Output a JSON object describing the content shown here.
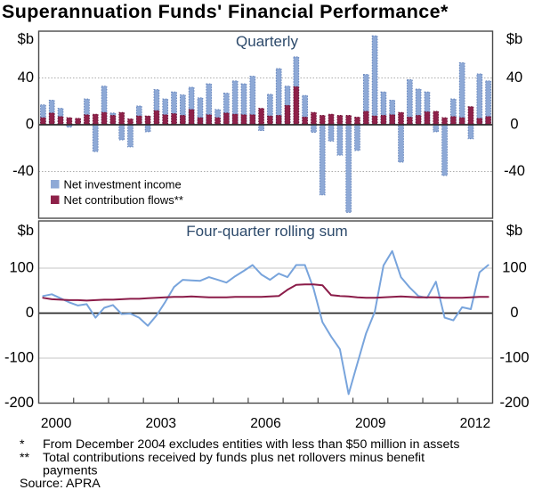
{
  "title": "Superannuation Funds' Financial Performance*",
  "top_panel": {
    "caption": "Quarterly",
    "unit_left": "$b",
    "unit_right": "$b",
    "legend": [
      {
        "label": "Net investment income",
        "color": "#8ea9d6"
      },
      {
        "label": "Net contribution flows**",
        "color": "#8e2149"
      }
    ]
  },
  "bottom_panel": {
    "caption": "Four-quarter rolling sum",
    "unit_left": "$b",
    "unit_right": "$b"
  },
  "x_axis": {
    "tick_years": [
      2001,
      2002,
      2003,
      2004,
      2005,
      2006,
      2007,
      2008,
      2009,
      2010,
      2011,
      2012
    ],
    "year_labels": [
      "2000",
      "2003",
      "2006",
      "2009",
      "2012"
    ]
  },
  "footnotes": [
    {
      "marker": "*",
      "text": "From December 2004 excludes entities with less than $50 million in assets"
    },
    {
      "marker": "**",
      "text": "Total contributions received by funds plus net rollovers minus benefit",
      "text_cont": "payments"
    }
  ],
  "source": "Source: APRA",
  "colors": {
    "invest": "#8ea9d6",
    "invest_border": "#5f7fb8",
    "contrib": "#8e2149",
    "contrib_border": "#6d1536",
    "invest_line": "#78a4dc",
    "contrib_line": "#8b1c49",
    "grid_top": "#adadad",
    "grid_bottom": "#c4c4c4",
    "zero": "#2b2b2b",
    "axis": "#4a4a4a"
  },
  "chart_data": [
    {
      "type": "bar",
      "panel": "top",
      "title": "Quarterly",
      "bar_mode": "overlay",
      "ylabel": "$b",
      "xlim": [
        2000,
        2013
      ],
      "ylim": [
        -80,
        80
      ],
      "yticks": [
        40,
        0,
        -40
      ],
      "categories": [
        "2000 Q1",
        "2000 Q2",
        "2000 Q3",
        "2000 Q4",
        "2001 Q1",
        "2001 Q2",
        "2001 Q3",
        "2001 Q4",
        "2002 Q1",
        "2002 Q2",
        "2002 Q3",
        "2002 Q4",
        "2003 Q1",
        "2003 Q2",
        "2003 Q3",
        "2003 Q4",
        "2004 Q1",
        "2004 Q2",
        "2004 Q3",
        "2004 Q4",
        "2005 Q1",
        "2005 Q2",
        "2005 Q3",
        "2005 Q4",
        "2006 Q1",
        "2006 Q2",
        "2006 Q3",
        "2006 Q4",
        "2007 Q1",
        "2007 Q2",
        "2007 Q3",
        "2007 Q4",
        "2008 Q1",
        "2008 Q2",
        "2008 Q3",
        "2008 Q4",
        "2009 Q1",
        "2009 Q2",
        "2009 Q3",
        "2009 Q4",
        "2010 Q1",
        "2010 Q2",
        "2010 Q3",
        "2010 Q4",
        "2011 Q1",
        "2011 Q2",
        "2011 Q3",
        "2011 Q4",
        "2012 Q1",
        "2012 Q2",
        "2012 Q3",
        "2012 Q4"
      ],
      "series": [
        {
          "key": "net-investment-income",
          "name": "Net investment income",
          "color": "#8ea9d6",
          "border": "#5f7fb8",
          "values": [
            17,
            21,
            14,
            -2,
            3,
            22,
            -23,
            33,
            10,
            -13,
            -19,
            16,
            -6,
            30,
            22,
            28,
            25.5,
            32,
            23,
            35,
            13,
            27,
            37.5,
            35,
            41.5,
            -5,
            26,
            48,
            33,
            58,
            25,
            -6.5,
            -60,
            -14,
            -26,
            -75,
            -22,
            43,
            76,
            28,
            21,
            -32,
            38.5,
            30.5,
            28,
            -6,
            -43.5,
            22,
            53,
            -12,
            43.5,
            37.5
          ]
        },
        {
          "key": "net-contribution-flows",
          "name": "Net contribution flows**",
          "color": "#8e2149",
          "border": "#6d1536",
          "values": [
            6,
            10,
            7,
            6,
            5.5,
            8.5,
            9,
            10.5,
            8,
            10.5,
            5,
            7.5,
            7.5,
            12,
            8.5,
            9.5,
            8,
            13,
            6,
            8.5,
            6,
            10,
            9,
            8.5,
            8.5,
            14,
            7.5,
            8,
            16.5,
            32.5,
            6.5,
            10.5,
            8,
            9,
            8,
            8,
            6.5,
            11.5,
            7.5,
            8,
            8.5,
            10.5,
            6.5,
            8,
            11,
            11.5,
            6,
            7,
            6,
            15.5,
            5.5,
            7
          ]
        }
      ]
    },
    {
      "type": "line",
      "panel": "bottom",
      "title": "Four-quarter rolling sum",
      "ylabel": "$b",
      "xlim": [
        2000,
        2013
      ],
      "ylim": [
        -200,
        205
      ],
      "yticks": [
        100,
        0,
        -100,
        -200
      ],
      "categories": [
        "2000 Q1",
        "2000 Q2",
        "2000 Q3",
        "2000 Q4",
        "2001 Q1",
        "2001 Q2",
        "2001 Q3",
        "2001 Q4",
        "2002 Q1",
        "2002 Q2",
        "2002 Q3",
        "2002 Q4",
        "2003 Q1",
        "2003 Q2",
        "2003 Q3",
        "2003 Q4",
        "2004 Q1",
        "2004 Q2",
        "2004 Q3",
        "2004 Q4",
        "2005 Q1",
        "2005 Q2",
        "2005 Q3",
        "2005 Q4",
        "2006 Q1",
        "2006 Q2",
        "2006 Q3",
        "2006 Q4",
        "2007 Q1",
        "2007 Q2",
        "2007 Q3",
        "2007 Q4",
        "2008 Q1",
        "2008 Q2",
        "2008 Q3",
        "2008 Q4",
        "2009 Q1",
        "2009 Q2",
        "2009 Q3",
        "2009 Q4",
        "2010 Q1",
        "2010 Q2",
        "2010 Q3",
        "2010 Q4",
        "2011 Q1",
        "2011 Q2",
        "2011 Q3",
        "2011 Q4",
        "2012 Q1",
        "2012 Q2",
        "2012 Q3",
        "2012 Q4"
      ],
      "series": [
        {
          "key": "net-investment-income-rolling",
          "name": "Net investment income",
          "color": "#78a4dc",
          "values": [
            38,
            42,
            33,
            24,
            17,
            20,
            -10,
            12,
            18,
            -2,
            -1,
            -10,
            -28,
            -5,
            25,
            58,
            74,
            73,
            72,
            80,
            74,
            68,
            82,
            94,
            107,
            86,
            74,
            88,
            80,
            107,
            107,
            54,
            -20,
            -52,
            -80,
            -180,
            -112,
            -45,
            3,
            106,
            138,
            80,
            57,
            38,
            34,
            70,
            -10,
            -16,
            13,
            9,
            91,
            107
          ]
        },
        {
          "key": "net-contribution-flows-rolling",
          "name": "Net contribution flows**",
          "color": "#8b1c49",
          "values": [
            34,
            31,
            30,
            29,
            29,
            28,
            29,
            30,
            30,
            31,
            32,
            32,
            33,
            34,
            35,
            36,
            36,
            37,
            36,
            35,
            35,
            35,
            36,
            36,
            36,
            36,
            37,
            38,
            52,
            63,
            64,
            64,
            62,
            40,
            38,
            37,
            35,
            34,
            34,
            35,
            36,
            37,
            36,
            35,
            35,
            35,
            34,
            34,
            34,
            35,
            36,
            36
          ]
        }
      ]
    }
  ]
}
